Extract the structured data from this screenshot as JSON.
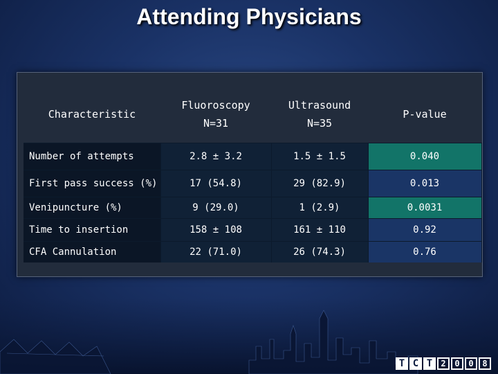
{
  "slide": {
    "title": "Attending Physicians"
  },
  "table": {
    "headers": {
      "characteristic": "Characteristic",
      "fluoroscopy": "Fluoroscopy",
      "fluoroscopy_n": "N=31",
      "ultrasound": "Ultrasound",
      "ultrasound_n": "N=35",
      "pvalue": "P-value"
    },
    "rows": [
      {
        "label": "Number of attempts",
        "fluoroscopy": "2.8 ± 3.2",
        "ultrasound": "1.5 ± 1.5",
        "pvalue": "0.040",
        "significant": true
      },
      {
        "label": "First pass success (%)",
        "fluoroscopy": "17 (54.8)",
        "ultrasound": "29 (82.9)",
        "pvalue": "0.013",
        "significant": true
      },
      {
        "label": "Venipuncture (%)",
        "fluoroscopy": "9 (29.0)",
        "ultrasound": "1 (2.9)",
        "pvalue": "0.0031",
        "significant": true
      },
      {
        "label": "Time to insertion",
        "fluoroscopy": "158 ± 108",
        "ultrasound": "161 ± 110",
        "pvalue": "0.92",
        "significant": false
      },
      {
        "label": "CFA Cannulation",
        "fluoroscopy": "22 (71.0)",
        "ultrasound": "26 (74.3)",
        "pvalue": "0.76",
        "significant": false
      }
    ]
  },
  "footer": {
    "logo_letters": [
      "T",
      "C",
      "T",
      "2",
      "0",
      "0",
      "8"
    ]
  },
  "colors": {
    "background": "#1a3266",
    "significant_cell": "#127468",
    "pvalue_cell": "#1a3566",
    "text": "#ffffff"
  }
}
